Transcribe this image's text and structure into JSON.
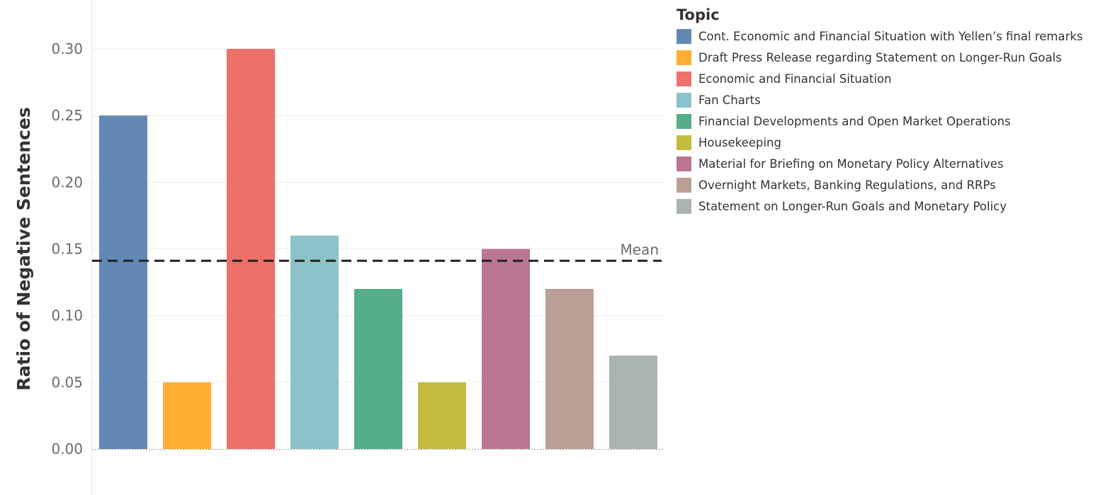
{
  "chart_data": {
    "type": "bar",
    "categories": [
      "Cont. Economic and Financial Situation with Yellen’s final remarks",
      "Draft Press Release regarding Statement on Longer-Run Goals",
      "Economic and Financial Situation",
      "Fan Charts",
      "Financial Developments and Open Market Operations",
      "Housekeeping",
      "Material for Briefing on Monetary Policy Alternatives",
      "Overnight Markets, Banking Regulations, and RRPs",
      "Statement on Longer-Run Goals and Monetary Policy"
    ],
    "values": [
      0.25,
      0.05,
      0.3,
      0.16,
      0.12,
      0.05,
      0.15,
      0.12,
      0.07
    ],
    "colors": [
      "#6388b4",
      "#ffae34",
      "#ef6f6a",
      "#8cc2ca",
      "#55ad89",
      "#c3bc3f",
      "#bb7693",
      "#baa094",
      "#a9b5ae"
    ],
    "ylabel": "Ratio of Negative Sentences",
    "ylim": [
      0,
      0.3
    ],
    "yticks": [
      "0.00",
      "0.05",
      "0.10",
      "0.15",
      "0.20",
      "0.25",
      "0.30"
    ],
    "mean": {
      "value": 0.1411,
      "label": "Mean"
    },
    "legend": {
      "title": "Topic",
      "placement": "right"
    },
    "grid": true
  }
}
